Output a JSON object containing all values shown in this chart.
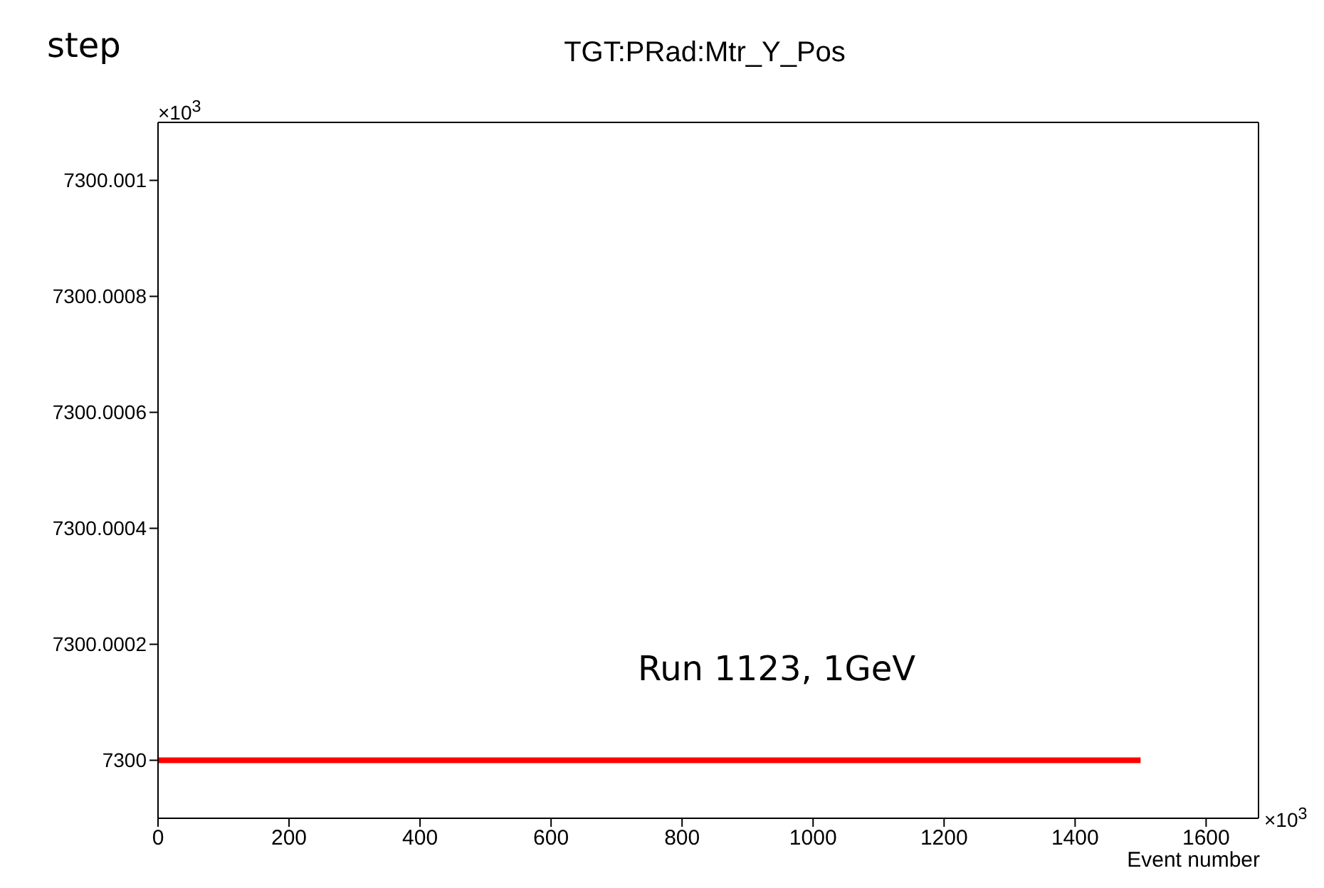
{
  "chart_data": {
    "type": "line",
    "title": "TGT:PRad:Mtr_Y_Pos",
    "xlabel": "Event number",
    "annotations": [
      "step",
      "Run 1123, 1GeV",
      "×10$^{3}$",
      "×10$^{3}$"
    ],
    "x": [
      0,
      1500
    ],
    "series": [
      {
        "color": "#ff0000",
        "values": [
          7300,
          7300
        ]
      }
    ],
    "xlim": [
      0,
      1680
    ],
    "xticks": [
      0,
      200,
      400,
      600,
      800,
      1000,
      1200,
      1400,
      1600
    ],
    "ylim": [
      7299.9999,
      7300.0011
    ],
    "yticks": [
      7300,
      7300.0002,
      7300.0004,
      7300.0006,
      7300.0008,
      7300.001
    ],
    "grid": false,
    "marker": "none",
    "line_style": "solid"
  }
}
